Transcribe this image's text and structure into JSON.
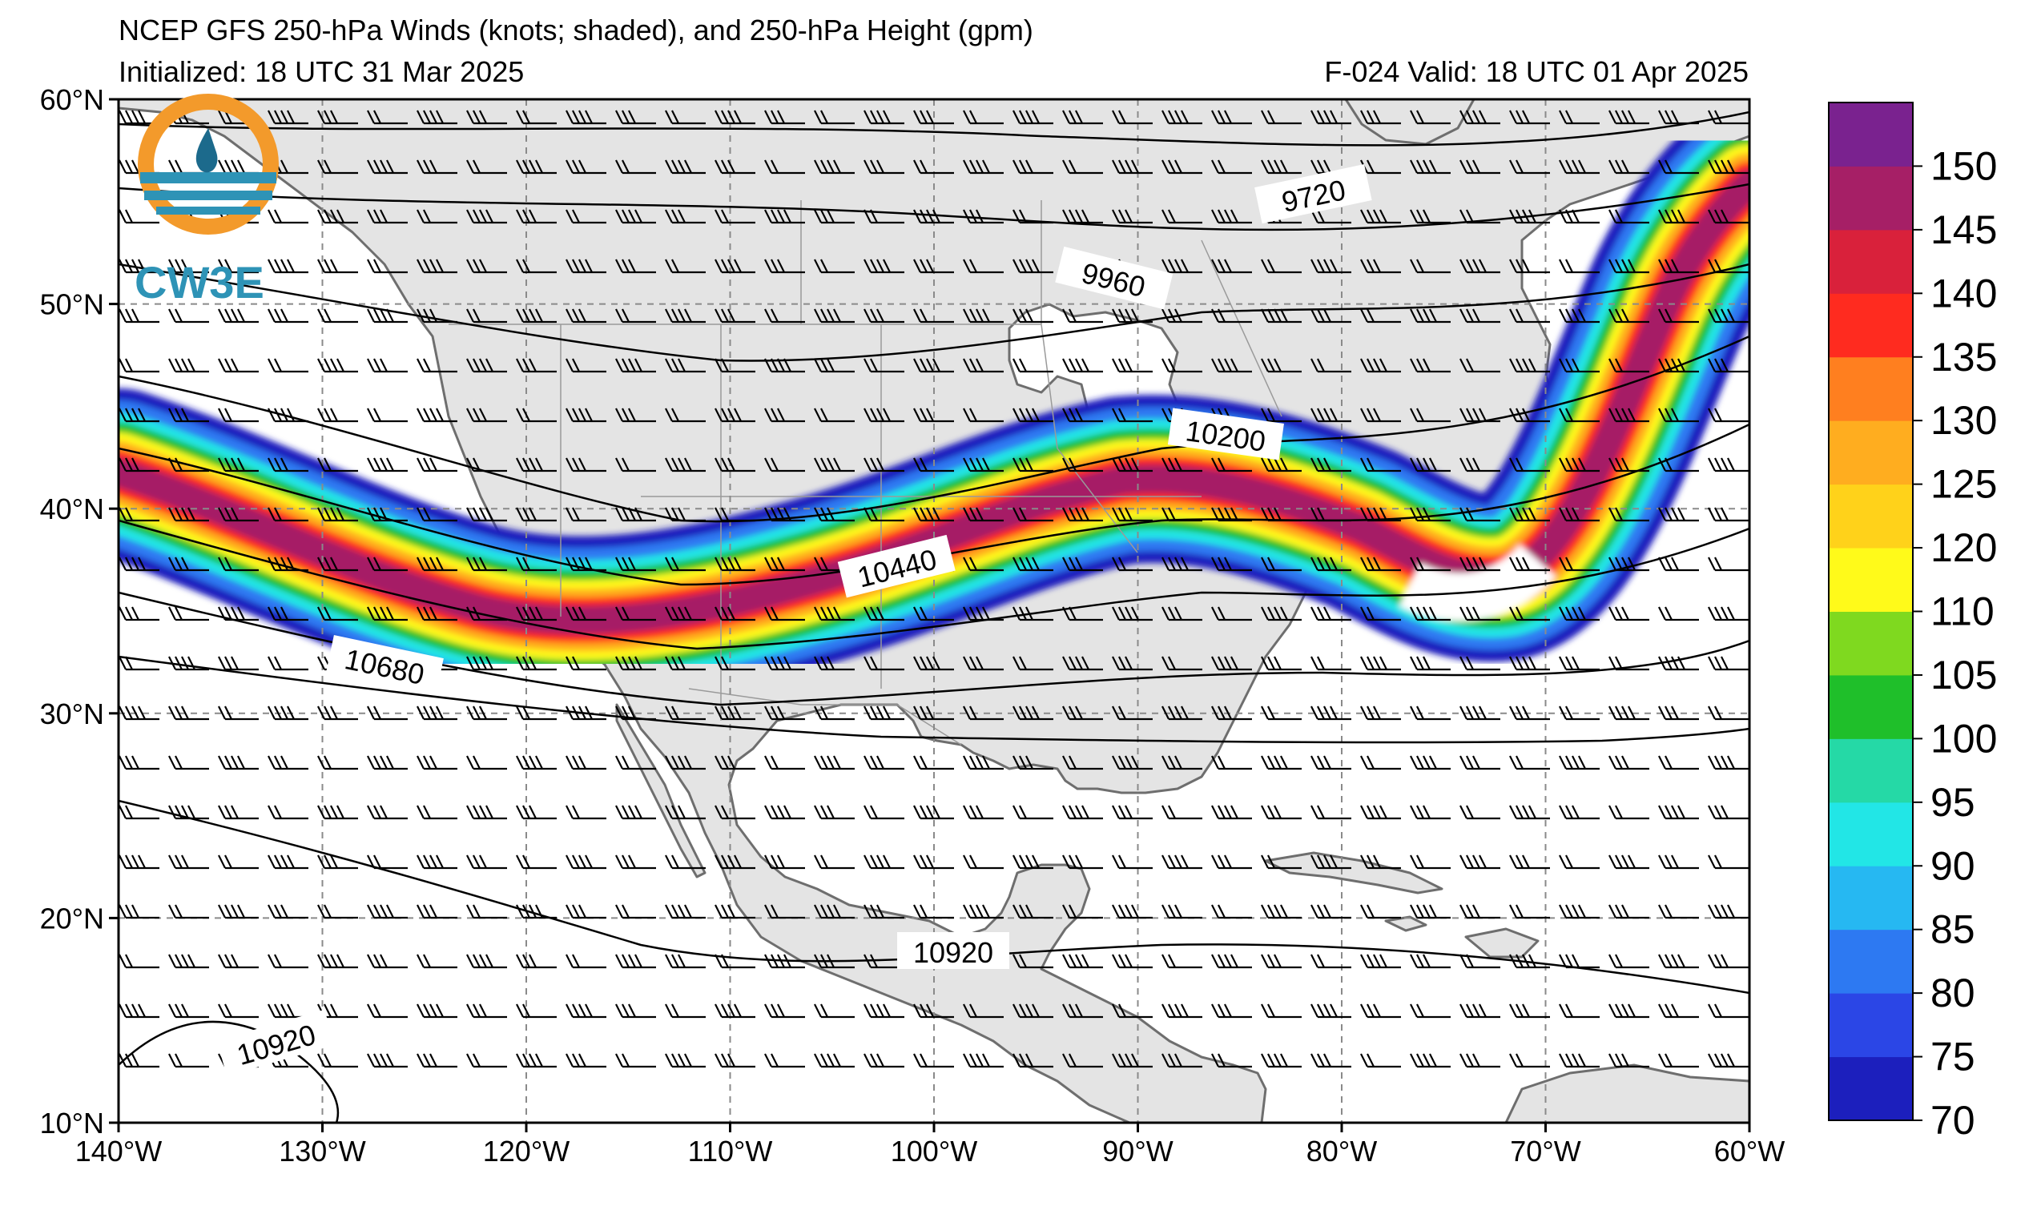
{
  "header": {
    "title": "NCEP GFS 250-hPa Winds (knots; shaded), and 250-hPa Height (gpm)",
    "initialized": "Initialized: 18 UTC 31 Mar 2025",
    "valid": "F-024  Valid: 18 UTC 01 Apr 2025"
  },
  "logo": {
    "text": "CW3E",
    "colors": {
      "orange": "#f39a2b",
      "teal": "#2e93b6",
      "dark": "#1c6a8c"
    }
  },
  "axes": {
    "lat_labels": [
      "60°N",
      "50°N",
      "40°N",
      "30°N",
      "20°N",
      "10°N"
    ],
    "lon_labels": [
      "140°W",
      "130°W",
      "120°W",
      "110°W",
      "100°W",
      "90°W",
      "80°W",
      "70°W",
      "60°W"
    ]
  },
  "height_contours": {
    "unit": "gpm",
    "labels": [
      "9720",
      "9960",
      "10200",
      "10440",
      "10680",
      "10920",
      "10920"
    ]
  },
  "colorbar": {
    "ticks": [
      "150",
      "145",
      "140",
      "135",
      "130",
      "125",
      "120",
      "110",
      "105",
      "100",
      "95",
      "90",
      "85",
      "80",
      "75",
      "70"
    ],
    "colors": [
      "#1c1fbd",
      "#2b46e6",
      "#2d79f2",
      "#26b8f2",
      "#22e6e6",
      "#25d9a6",
      "#1fbf2a",
      "#7fd91f",
      "#fffa1a",
      "#ffd21a",
      "#ffad1f",
      "#ff7f1f",
      "#ff2b1f",
      "#d9213b",
      "#a61f66",
      "#7a228f"
    ]
  },
  "colors": {
    "land": "#e4e4e4",
    "coast": "#6e6e6e",
    "grid": "#8a8a8a"
  }
}
